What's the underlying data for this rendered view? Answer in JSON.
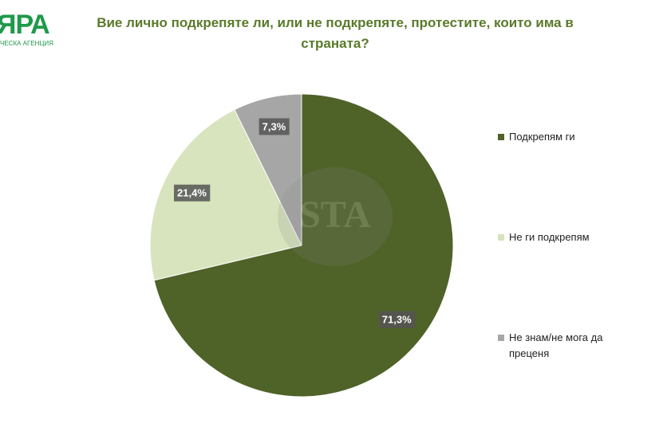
{
  "logo": {
    "name": "ЯРА",
    "subtitle": "ЧЕСКА АГЕНЦИЯ"
  },
  "watermark": "STA",
  "chart_data": {
    "type": "pie",
    "title": "Вие лично подкрепяте ли, или не подкрепяте, протестите, които има в страната?",
    "categories": [
      "Подкрепям ги",
      "Не ги подкрепям",
      "Не знам/не мога да преценя"
    ],
    "values": [
      71.3,
      21.4,
      7.3
    ],
    "value_labels": [
      "71,3%",
      "21,4%",
      "7,3%"
    ],
    "colors": [
      "#4f6228",
      "#d7e4bd",
      "#a6a6a6"
    ],
    "legend": "right"
  }
}
